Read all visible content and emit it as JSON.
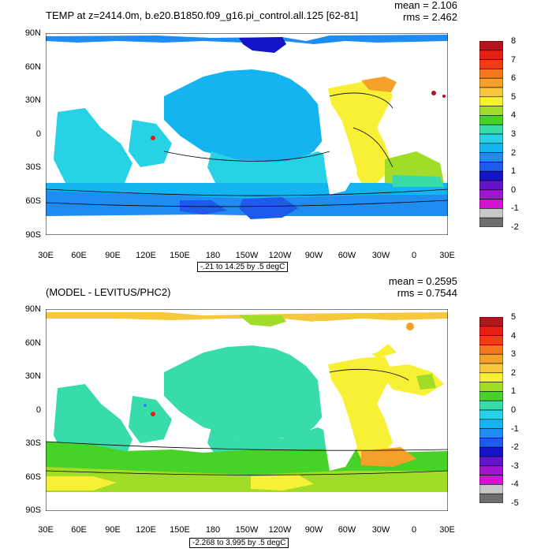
{
  "panel1": {
    "title": "TEMP at z=2414.0m, b.e20.B1850.f09_g16.pi_control.all.125 [62-81]",
    "mean_label": "mean = 2.106",
    "rms_label": "rms = 2.462",
    "range_label": "-.21 to 14.25 by .5 degC",
    "colorbar_labels": [
      "8",
      "7",
      "6",
      "5",
      "4",
      "3",
      "2",
      "1",
      "0",
      "-1",
      "-2"
    ],
    "colors": [
      "#b4141c",
      "#e61e14",
      "#f03c14",
      "#f5781e",
      "#f5a028",
      "#f8c83c",
      "#f8f034",
      "#a0dc28",
      "#46d228",
      "#38dcaa",
      "#28d2e6",
      "#14b4f0",
      "#1e8cf0",
      "#1e5aeb",
      "#1414c8",
      "#6414c8",
      "#a014d2",
      "#d214d2",
      "#c8c8c8",
      "#6e6e6e"
    ]
  },
  "panel2": {
    "title": "(MODEL - LEVITUS/PHC2)",
    "mean_label": "mean = 0.2595",
    "rms_label": "rms = 0.7544",
    "range_label": "-2.268 to 3.995 by .5 degC",
    "colorbar_labels": [
      "5",
      "4",
      "3",
      "2",
      "1",
      "0",
      "-1",
      "-2",
      "-3",
      "-4",
      "-5"
    ],
    "colors": [
      "#b4141c",
      "#e61e14",
      "#f03c14",
      "#f5781e",
      "#f5a028",
      "#f8c83c",
      "#f8f034",
      "#a0dc28",
      "#46d228",
      "#38dcaa",
      "#28d2e6",
      "#14b4f0",
      "#1e8cf0",
      "#1e5aeb",
      "#1414c8",
      "#6414c8",
      "#a014d2",
      "#d214d2",
      "#c8c8c8",
      "#6e6e6e"
    ]
  },
  "lat_labels": [
    "90N",
    "60N",
    "30N",
    "0",
    "30S",
    "60S",
    "90S"
  ],
  "lon_labels": [
    "30E",
    "60E",
    "90E",
    "120E",
    "150E",
    "180",
    "150W",
    "120W",
    "90W",
    "60W",
    "30W",
    "0",
    "30E"
  ]
}
